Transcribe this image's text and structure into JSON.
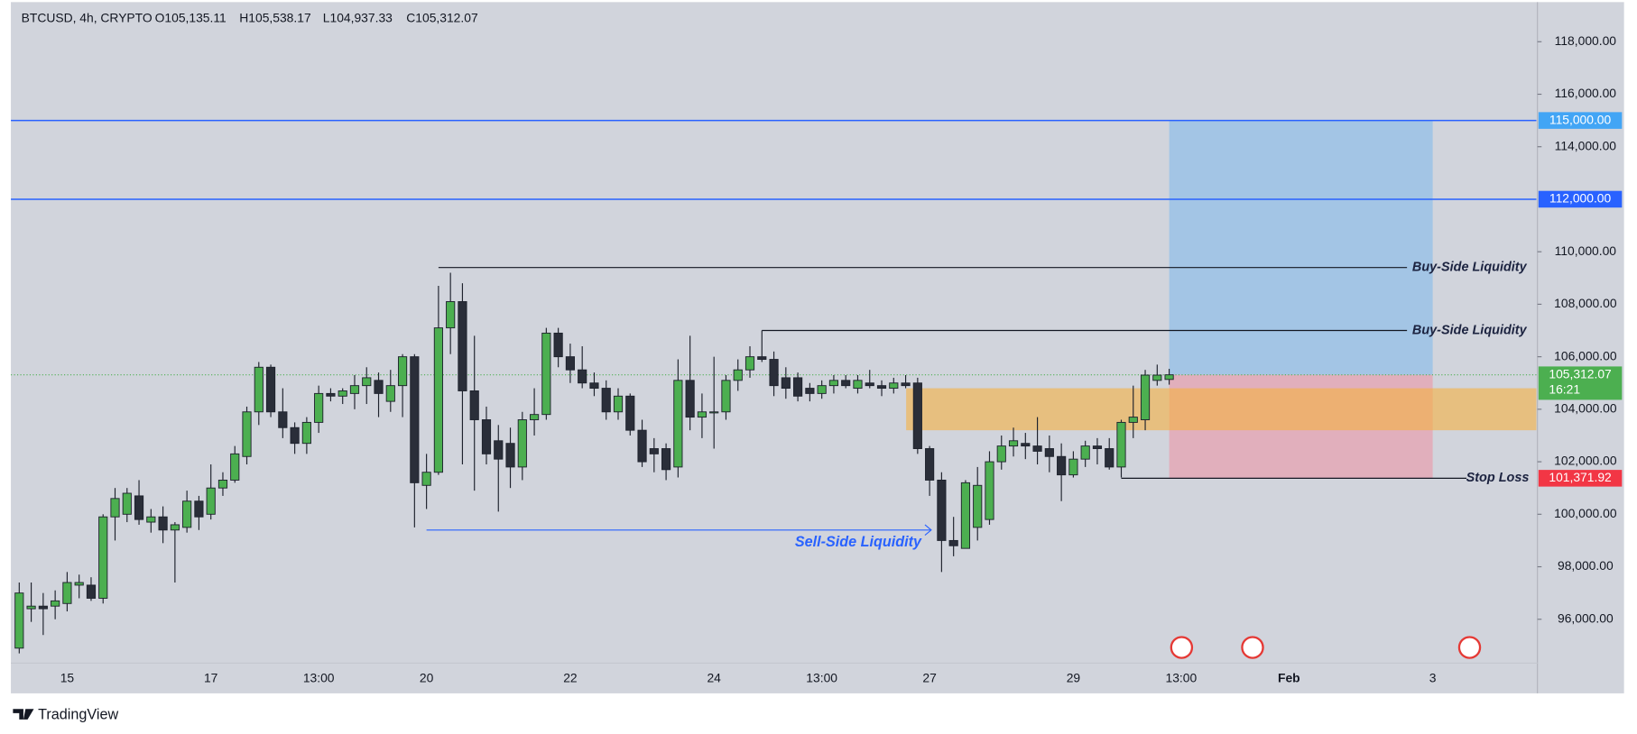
{
  "chart_data": {
    "type": "candlestick",
    "symbol": "BTCUSD, 4h, CRYPTO",
    "legend_text": [
      "O105,135.11",
      "H105,538.17",
      "L104,937.33",
      "C105,312.07"
    ],
    "categories": [
      null,
      null,
      null,
      null,
      "15",
      null,
      null,
      null,
      null,
      null,
      null,
      null,
      null,
      null,
      null,
      null,
      "17",
      null,
      null,
      null,
      null,
      null,
      null,
      null,
      null,
      "13:00",
      null,
      null,
      null,
      null,
      null,
      null,
      null,
      null,
      "20",
      null,
      null,
      null,
      null,
      null,
      null,
      null,
      null,
      null,
      null,
      null,
      "22",
      null,
      null,
      null,
      null,
      null,
      null,
      null,
      null,
      null,
      null,
      null,
      "24",
      null,
      null,
      null,
      null,
      null,
      null,
      null,
      null,
      "13:00",
      null,
      null,
      null,
      null,
      null,
      null,
      null,
      null,
      "27",
      null,
      null,
      null,
      null,
      null,
      null,
      null,
      null,
      null,
      null,
      null,
      "29",
      null,
      null,
      null,
      null,
      null,
      null,
      null,
      null,
      "13:00",
      null,
      null,
      null,
      null,
      null,
      null,
      null,
      null,
      "Feb",
      null,
      null,
      null,
      null,
      null,
      null,
      null,
      null,
      null,
      null,
      null,
      "3",
      null,
      null,
      null,
      null,
      null,
      null,
      null,
      null
    ],
    "open": [
      94900,
      96400,
      96500,
      96500,
      96600,
      97300,
      97300,
      96800,
      99900,
      100000,
      100700,
      99700,
      99900,
      99400,
      99500,
      100500,
      100000,
      101000,
      101300,
      102200,
      103900,
      105600,
      103900,
      103300,
      102700,
      103500,
      104600,
      104500,
      104600,
      104900,
      105100,
      104300,
      104900,
      106000,
      101100,
      101600,
      107100,
      108100,
      104700,
      103600,
      102800,
      102700,
      101800,
      103600,
      103800,
      106900,
      106000,
      105500,
      105000,
      104800,
      103900,
      104500,
      103200,
      102500,
      102500,
      101800,
      105100,
      103700,
      103900,
      103900,
      105100,
      105500,
      106000,
      105900,
      105200,
      105200,
      104800,
      104600,
      104900,
      105100,
      104800,
      105000,
      104900,
      104800,
      105000,
      105000,
      102500,
      101300,
      99000,
      98700,
      99500,
      99800,
      102000,
      102600,
      102700,
      102600,
      102500,
      102200,
      101500,
      102100,
      102600,
      102500,
      101800,
      103500,
      103600,
      105100,
      105135.11,
      null,
      null,
      null,
      null,
      null,
      null,
      null,
      null,
      null,
      null,
      null,
      null,
      null,
      null,
      null,
      null,
      null,
      null,
      null,
      null,
      null,
      null,
      null,
      null,
      null,
      null,
      null,
      null,
      null,
      null
    ],
    "high": [
      97400,
      97400,
      97000,
      97100,
      97800,
      97700,
      97600,
      100000,
      101000,
      101000,
      101300,
      100200,
      100300,
      99700,
      100900,
      100700,
      101900,
      101600,
      102600,
      104100,
      105800,
      105700,
      104800,
      103500,
      103700,
      104900,
      104800,
      104800,
      105300,
      105600,
      105400,
      105500,
      106100,
      106100,
      102300,
      108700,
      109200,
      108800,
      106800,
      104100,
      103400,
      103300,
      103900,
      104800,
      107100,
      107100,
      106500,
      106400,
      105400,
      105100,
      104800,
      104600,
      103600,
      102900,
      102700,
      105900,
      106800,
      104600,
      106000,
      105300,
      105900,
      106400,
      107000,
      106200,
      105600,
      105400,
      105000,
      105100,
      105300,
      105300,
      105300,
      105500,
      105100,
      105200,
      105300,
      105200,
      102600,
      101600,
      99900,
      101300,
      101800,
      102400,
      103000,
      103300,
      103100,
      103700,
      103000,
      102700,
      102400,
      102800,
      102900,
      102900,
      103600,
      104900,
      105500,
      105700,
      105538.17,
      null,
      null,
      null,
      null,
      null,
      null,
      null,
      null,
      null,
      null,
      null,
      null,
      null,
      null,
      null,
      null,
      null,
      null,
      null,
      null,
      null,
      null,
      null,
      null,
      null,
      null,
      null,
      null,
      null,
      null
    ],
    "low": [
      94700,
      95900,
      95400,
      96000,
      96300,
      96800,
      96700,
      96600,
      99000,
      99700,
      99600,
      99300,
      98900,
      97400,
      99300,
      99400,
      99800,
      100700,
      101200,
      101900,
      103400,
      103700,
      102900,
      102300,
      102300,
      103100,
      104300,
      104200,
      104000,
      104200,
      103700,
      103900,
      103700,
      99500,
      100200,
      101500,
      106100,
      101900,
      100900,
      101900,
      100100,
      101000,
      101300,
      103000,
      103600,
      105600,
      105000,
      104800,
      104500,
      103600,
      103600,
      103000,
      101800,
      101600,
      101300,
      101400,
      103200,
      102900,
      102500,
      103600,
      104700,
      105200,
      105800,
      104500,
      104400,
      104300,
      104300,
      104400,
      104600,
      104800,
      104600,
      104800,
      104500,
      104600,
      104800,
      102300,
      100700,
      97800,
      98400,
      98700,
      99000,
      99600,
      101700,
      102200,
      102100,
      101900,
      101600,
      100500,
      101400,
      101800,
      101900,
      101700,
      101400,
      102900,
      103200,
      104900,
      104937.33,
      null,
      null,
      null,
      null,
      null,
      null,
      null,
      null,
      null,
      null,
      null,
      null,
      null,
      null,
      null,
      null,
      null,
      null,
      null,
      null,
      null,
      null,
      null,
      null,
      null,
      null,
      null,
      null,
      null,
      null
    ],
    "close": [
      97000,
      96500,
      96400,
      96700,
      97400,
      97400,
      96800,
      99900,
      100600,
      100800,
      99800,
      99900,
      99400,
      99600,
      100500,
      99900,
      101000,
      101300,
      102300,
      103900,
      105600,
      103900,
      103300,
      102700,
      103500,
      104600,
      104500,
      104700,
      104900,
      105200,
      104600,
      104900,
      106000,
      101200,
      101600,
      107100,
      108100,
      104700,
      103600,
      102300,
      102100,
      101800,
      103600,
      103800,
      106900,
      106000,
      105500,
      105000,
      104800,
      103900,
      104500,
      103200,
      102000,
      102300,
      101700,
      105100,
      103700,
      103900,
      103900,
      105100,
      105500,
      106000,
      105900,
      104900,
      104800,
      104500,
      104600,
      104900,
      105100,
      104900,
      105100,
      104900,
      104800,
      105000,
      104900,
      102500,
      101300,
      99000,
      98800,
      101200,
      101100,
      102000,
      102600,
      102800,
      102600,
      102400,
      102200,
      101500,
      102100,
      102600,
      102500,
      101800,
      103500,
      103700,
      105300,
      105300,
      105312.07,
      null,
      null,
      null,
      null,
      null,
      null,
      null,
      null,
      null,
      null,
      null,
      null,
      null,
      null,
      null,
      null,
      null,
      null,
      null,
      null,
      null,
      null,
      null,
      null,
      null,
      null,
      null,
      null,
      null,
      null
    ],
    "up_color": "#4caf50",
    "down_color": "#2a2e39",
    "ylim": [
      94330,
      119510
    ],
    "yticks": [
      {
        "value": 96000,
        "label": "96,000.00"
      },
      {
        "value": 98000,
        "label": "98,000.00"
      },
      {
        "value": 100000,
        "label": "100,000.00"
      },
      {
        "value": 102000,
        "label": "102,000.00"
      },
      {
        "value": 104000,
        "label": "104,000.00"
      },
      {
        "value": 106000,
        "label": "106,000.00"
      },
      {
        "value": 108000,
        "label": "108,000.00"
      },
      {
        "value": 110000,
        "label": "110,000.00"
      },
      {
        "value": 114000,
        "label": "114,000.00"
      },
      {
        "value": 116000,
        "label": "116,000.00"
      },
      {
        "value": 118000,
        "label": "118,000.00"
      }
    ],
    "grid": false,
    "levels": [
      {
        "value": 115000,
        "label": "115,000.00",
        "color": "#2962ff",
        "label_color": "#42a5f5"
      },
      {
        "value": 112000,
        "label": "112,000.00",
        "color": "#2962ff",
        "label_color": "#2962ff"
      }
    ],
    "buy_side": [
      {
        "text": "Buy-Side Liquidity",
        "value": 109400
      },
      {
        "text": "Buy-Side Liquidity",
        "value": 107000
      }
    ],
    "sell_side": {
      "text": "Sell-Side Liquidity",
      "value": 99400,
      "color": "#2962ff"
    },
    "zone": {
      "top": 104800,
      "bottom": 103200,
      "color": "#f5b041"
    },
    "current_price": {
      "value": 105312.07,
      "label": "105,312.07",
      "countdown": "16:21",
      "color": "#4caf50"
    },
    "stop_loss": {
      "value": 101371.92,
      "label": "101,371.92",
      "text": "Stop Loss",
      "color": "#f23645"
    },
    "target_color": "#90bfe8",
    "stop_color": "#e8a0ae"
  },
  "footer": {
    "brand": "TradingView"
  }
}
